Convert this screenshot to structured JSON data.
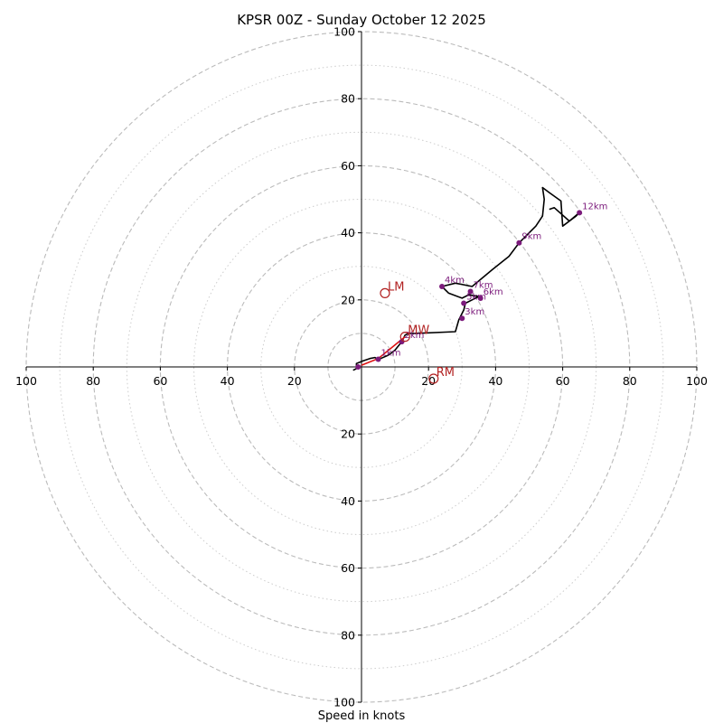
{
  "chart_data": {
    "type": "hodograph",
    "title": "KPSR 00Z - Sunday October 12 2025",
    "xlabel": "Speed in knots",
    "range": [
      -100,
      100
    ],
    "ticks": {
      "top": [
        "100",
        "80",
        "60",
        "40",
        "20"
      ],
      "bottom": [
        "20",
        "40",
        "60",
        "80",
        "100"
      ],
      "left": [
        "100",
        "80",
        "60",
        "40",
        "20"
      ],
      "right": [
        "20",
        "40",
        "60",
        "80",
        "100"
      ]
    },
    "ring_dashed": [
      10,
      20,
      40,
      60,
      80,
      100
    ],
    "ring_dotted": [
      30,
      50,
      70,
      90
    ],
    "colors": {
      "profile": "#000000",
      "height_points": "#7b1a7b",
      "mean_layer": "#dd1111",
      "motion": "#b22222",
      "rings": "#bbbbbb"
    },
    "profile": [
      [
        -2.5,
        -1
      ],
      [
        -1.5,
        -0.5
      ],
      [
        -1.5,
        1
      ],
      [
        0.5,
        1.8
      ],
      [
        2.5,
        2.5
      ],
      [
        4,
        2.8
      ],
      [
        5,
        2.2
      ],
      [
        8,
        3.5
      ],
      [
        10,
        5
      ],
      [
        12,
        7.5
      ],
      [
        13,
        9.5
      ],
      [
        14,
        10
      ],
      [
        16,
        10
      ],
      [
        28,
        10.5
      ],
      [
        29,
        14
      ],
      [
        30.5,
        17
      ],
      [
        31,
        19
      ],
      [
        33,
        20
      ],
      [
        35,
        21
      ],
      [
        32,
        21.5
      ],
      [
        30,
        20.5
      ],
      [
        26,
        22
      ],
      [
        24,
        24
      ],
      [
        28,
        25
      ],
      [
        33,
        24
      ],
      [
        39,
        29
      ],
      [
        44,
        33
      ],
      [
        47,
        37
      ],
      [
        52,
        42
      ],
      [
        54,
        45
      ],
      [
        54.5,
        50
      ],
      [
        54,
        53.5
      ],
      [
        56,
        52
      ],
      [
        59.5,
        49.5
      ],
      [
        60,
        42
      ],
      [
        64,
        45
      ],
      [
        65,
        46
      ],
      [
        62,
        43.5
      ],
      [
        57.5,
        47.5
      ],
      [
        56,
        47
      ]
    ],
    "height_points": [
      {
        "label": "",
        "u": -1,
        "v": 0
      },
      {
        "label": "1km",
        "u": 5,
        "v": 2.3
      },
      {
        "label": "2km",
        "u": 12,
        "v": 7.5
      },
      {
        "label": "3km",
        "u": 30,
        "v": 14.5
      },
      {
        "label": "4km",
        "u": 24,
        "v": 24
      },
      {
        "label": "5km",
        "u": 30.5,
        "v": 19
      },
      {
        "label": "6km",
        "u": 35.5,
        "v": 20.5
      },
      {
        "label": "7km",
        "u": 32.5,
        "v": 22.5
      },
      {
        "label": "9km",
        "u": 47,
        "v": 37
      },
      {
        "label": "12km",
        "u": 65,
        "v": 46
      }
    ],
    "mean_layer_line": [
      [
        0,
        0.5
      ],
      [
        5,
        2.5
      ],
      [
        13,
        9
      ]
    ],
    "storm_motion": [
      {
        "label": "LM",
        "u": 7,
        "v": 22
      },
      {
        "label": "MW",
        "u": 13,
        "v": 9
      },
      {
        "label": "RM",
        "u": 21.5,
        "v": -3.5
      }
    ]
  }
}
